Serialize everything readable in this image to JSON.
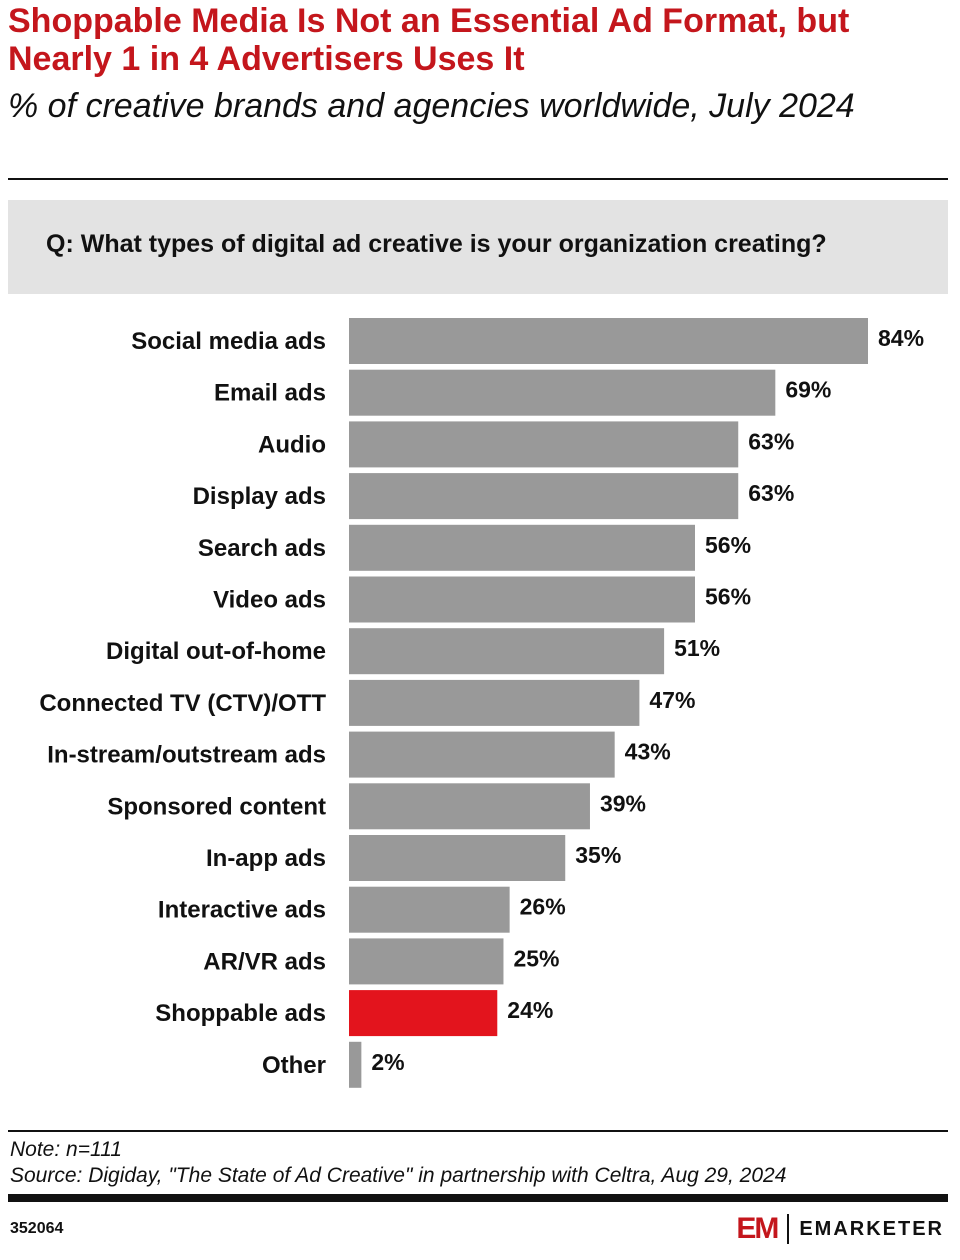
{
  "header": {
    "title": "Shoppable Media Is Not an Essential Ad Format, but Nearly 1 in 4 Advertisers Uses It",
    "subtitle": "% of creative brands and agencies worldwide, July 2024"
  },
  "question": "Q: What types of digital ad creative is your organization creating?",
  "chart_data": {
    "type": "bar",
    "orientation": "horizontal",
    "title": "Shoppable Media Is Not an Essential Ad Format, but Nearly 1 in 4 Advertisers Uses It",
    "subtitle": "% of creative brands and agencies worldwide, July 2024",
    "categories": [
      "Social media ads",
      "Email ads",
      "Audio",
      "Display ads",
      "Search ads",
      "Video ads",
      "Digital out-of-home",
      "Connected TV (CTV)/OTT",
      "In-stream/outstream ads",
      "Sponsored content",
      "In-app ads",
      "Interactive ads",
      "AR/VR ads",
      "Shoppable ads",
      "Other"
    ],
    "values": [
      84,
      69,
      63,
      63,
      56,
      56,
      51,
      47,
      43,
      39,
      35,
      26,
      25,
      24,
      2
    ],
    "value_labels": [
      "84%",
      "69%",
      "63%",
      "63%",
      "56%",
      "56%",
      "51%",
      "47%",
      "43%",
      "39%",
      "35%",
      "26%",
      "25%",
      "24%",
      "2%"
    ],
    "highlight_category": "Shoppable ads",
    "xlim": [
      0,
      84
    ],
    "grid": false,
    "legend": "none",
    "colors": {
      "bar": "#999999",
      "highlight": "#e3141d"
    }
  },
  "footer": {
    "note": "Note: n=111",
    "source": "Source: Digiday, \"The State of Ad Creative\" in partnership with Celtra, Aug 29, 2024",
    "chart_id": "352064",
    "logo_mark": "EM",
    "logo_text": "EMARKETER"
  },
  "colors": {
    "title": "#c4161c",
    "question_bg": "#e3e3e3",
    "text": "#111111"
  }
}
